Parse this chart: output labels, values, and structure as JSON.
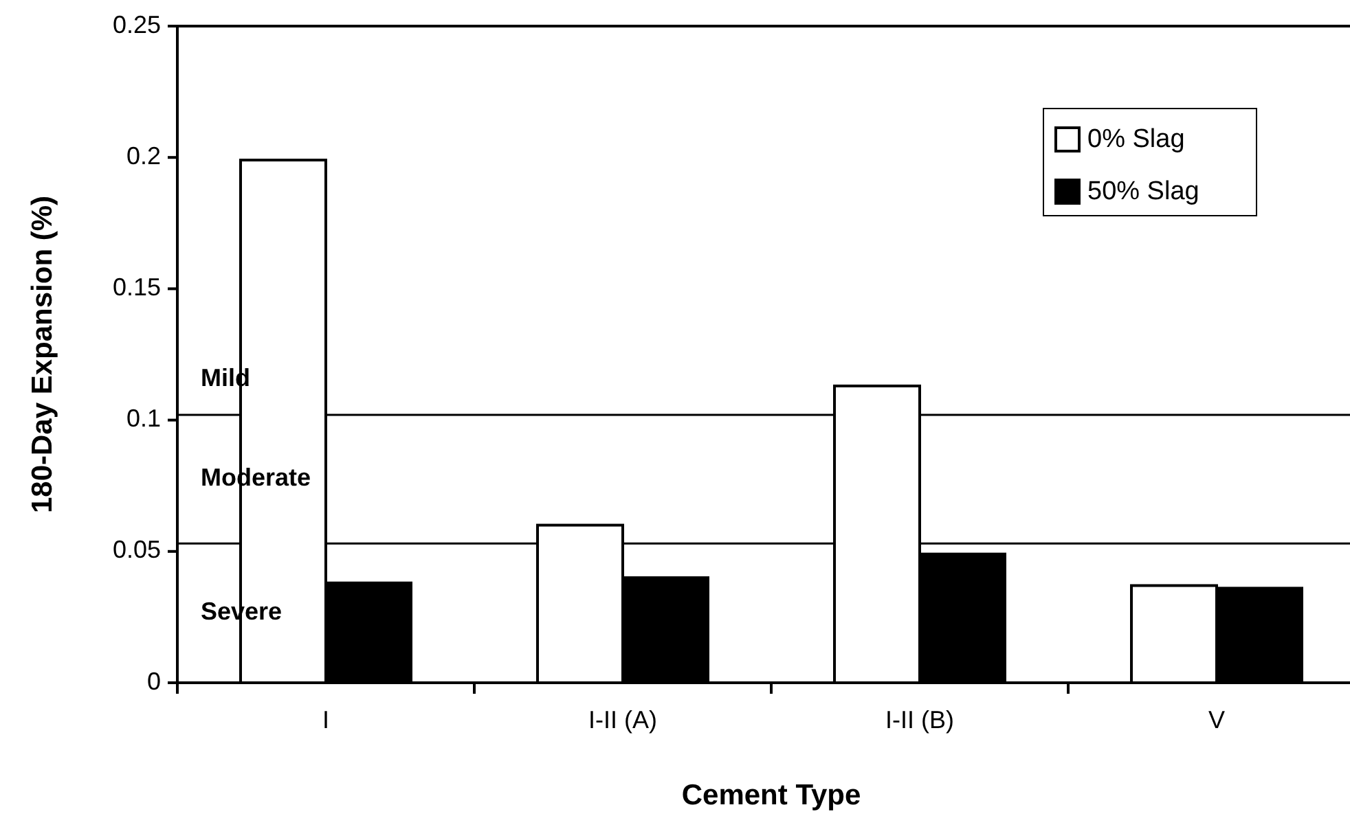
{
  "chart_data": {
    "type": "bar",
    "xlabel": "Cement Type",
    "ylabel": "180-Day Expansion (%)",
    "categories": [
      "I",
      "I-II (A)",
      "I-II (B)",
      "V"
    ],
    "series": [
      {
        "name": "0% Slag",
        "color": "#ffffff",
        "values": [
          0.199,
          0.06,
          0.113,
          0.037
        ]
      },
      {
        "name": "50% Slag",
        "color": "#000000",
        "values": [
          0.038,
          0.04,
          0.049,
          0.036
        ]
      }
    ],
    "ylim": [
      0,
      0.25
    ],
    "yticks": [
      0,
      0.05,
      0.1,
      0.15,
      0.2,
      0.25
    ],
    "ref_lines": [
      {
        "axis": "y",
        "value": 0.102
      },
      {
        "axis": "y",
        "value": 0.053
      }
    ],
    "annotations": [
      "Mild",
      "Moderate",
      "Severe"
    ],
    "legend": "top right",
    "grid": false
  }
}
